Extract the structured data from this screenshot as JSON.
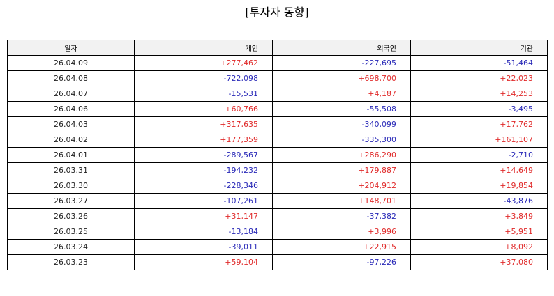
{
  "title": "[투자자 동향]",
  "table": {
    "headers": [
      "일자",
      "개인",
      "외국인",
      "기관"
    ],
    "rows": [
      [
        "26.04.09",
        "+277,462",
        "-227,695",
        "-51,464"
      ],
      [
        "26.04.08",
        "-722,098",
        "+698,700",
        "+22,023"
      ],
      [
        "26.04.07",
        "-15,531",
        "+4,187",
        "+14,253"
      ],
      [
        "26.04.06",
        "+60,766",
        "-55,508",
        "-3,495"
      ],
      [
        "26.04.03",
        "+317,635",
        "-340,099",
        "+17,762"
      ],
      [
        "26.04.02",
        "+177,359",
        "-335,300",
        "+161,107"
      ],
      [
        "26.04.01",
        "-289,567",
        "+286,290",
        "-2,710"
      ],
      [
        "26.03.31",
        "-194,232",
        "+179,887",
        "+14,649"
      ],
      [
        "26.03.30",
        "-228,346",
        "+204,912",
        "+19,854"
      ],
      [
        "26.03.27",
        "-107,261",
        "+148,701",
        "-43,876"
      ],
      [
        "26.03.26",
        "+31,147",
        "-37,382",
        "+3,849"
      ],
      [
        "26.03.25",
        "-13,184",
        "+3,996",
        "+5,951"
      ],
      [
        "26.03.24",
        "-39,011",
        "+22,915",
        "+8,092"
      ],
      [
        "26.03.23",
        "+59,104",
        "-97,226",
        "+37,080"
      ]
    ]
  },
  "colors": {
    "positive": "#e02a2a",
    "negative": "#2a2ab8",
    "header_bg": "#f2f2f2"
  }
}
